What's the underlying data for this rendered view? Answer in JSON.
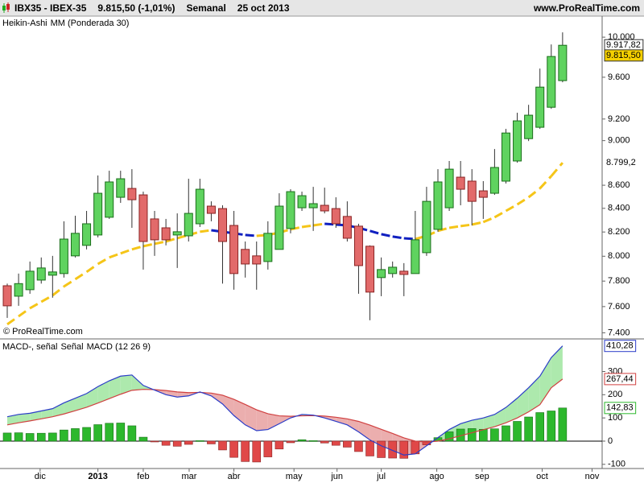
{
  "header": {
    "symbol": "IBX35 - IBEX-35",
    "price": "9.815,50 (-1,01%)",
    "period": "Semanal",
    "date": "25 oct 2013",
    "site": "www.ProRealTime.com",
    "watermark": "© ProRealTime.com"
  },
  "chart_data": [
    {
      "type": "candlestick",
      "name": "Heikin-Ashi",
      "log_scale": true,
      "up_color": "#5fd35f",
      "down_color": "#e26a6a",
      "xlim": [
        -0.64,
        52.49
      ],
      "ylim": [
        7360,
        10200
      ],
      "yticks": [
        {
          "value": 7400,
          "label": "7.400"
        },
        {
          "value": 7600,
          "label": "7.600"
        },
        {
          "value": 7800,
          "label": "7.800"
        },
        {
          "value": 8000,
          "label": "8.000"
        },
        {
          "value": 8200,
          "label": "8.200"
        },
        {
          "value": 8400,
          "label": "8.400"
        },
        {
          "value": 8600,
          "label": "8.600"
        },
        {
          "value": 9000,
          "label": "9.000"
        },
        {
          "value": 9200,
          "label": "9.200"
        },
        {
          "value": 9600,
          "label": "9.600"
        },
        {
          "value": 10000,
          "label": "10.000"
        }
      ],
      "open": [
        7763,
        7681,
        7732,
        7808,
        7847,
        7860,
        8003,
        8089,
        8175,
        8324,
        8495,
        8572,
        8516,
        8310,
        8235,
        8175,
        8168,
        8269,
        8419,
        8398,
        8255,
        8056,
        8003,
        7957,
        8056,
        8229,
        8405,
        8405,
        8426,
        8398,
        8331,
        8249,
        8082,
        7828,
        7860,
        7879,
        7860,
        8029,
        8222,
        8405,
        8671,
        8636,
        8551,
        8530,
        8636,
        8815,
        9018,
        9123,
        9311,
        9567
      ],
      "high": [
        7780,
        7860,
        7957,
        7990,
        8003,
        8290,
        8337,
        8378,
        8686,
        8728,
        8728,
        8742,
        8544,
        8378,
        8310,
        8357,
        8657,
        8657,
        8460,
        8426,
        8378,
        8121,
        8121,
        8290,
        8530,
        8565,
        8544,
        8586,
        8579,
        8495,
        8460,
        8269,
        8089,
        7990,
        7957,
        7944,
        8378,
        8586,
        8742,
        8815,
        8815,
        8742,
        8636,
        8923,
        9108,
        9259,
        9334,
        9685,
        9926,
        10049
      ],
      "low": [
        7513,
        7606,
        7700,
        7780,
        7669,
        7828,
        7990,
        8056,
        8155,
        8310,
        8447,
        8235,
        7892,
        8003,
        8089,
        7905,
        8121,
        8242,
        8290,
        7780,
        7732,
        7828,
        7732,
        7892,
        8056,
        8189,
        8378,
        8209,
        8357,
        8235,
        8121,
        7700,
        7495,
        7681,
        7828,
        7681,
        7860,
        8003,
        8202,
        8378,
        8426,
        8255,
        8310,
        8516,
        8615,
        8800,
        8996,
        9108,
        9296,
        9551
      ],
      "close": [
        7606,
        7780,
        7879,
        7905,
        7873,
        8141,
        8189,
        8269,
        8530,
        8629,
        8657,
        8474,
        8121,
        8135,
        8135,
        8202,
        8357,
        8565,
        8357,
        8121,
        7860,
        7937,
        7937,
        8189,
        8419,
        8544,
        8509,
        8440,
        8378,
        8269,
        8148,
        7924,
        7713,
        7892,
        7911,
        7853,
        8135,
        8460,
        8629,
        8742,
        8565,
        8460,
        8495,
        8757,
        9070,
        9183,
        9236,
        9504,
        9805,
        9917.82
      ],
      "last_label": "9.917,82",
      "last_price": {
        "value": 9815.5,
        "label": "9.815,50"
      },
      "ma": {
        "name": "MM (Ponderada 30)",
        "color": "#f5c518",
        "down_color": "#1020c0",
        "last_label": "8.799,2",
        "values": [
          7464,
          7525,
          7587,
          7637,
          7687,
          7757,
          7815,
          7873,
          7937,
          7990,
          8023,
          8056,
          8082,
          8102,
          8121,
          8148,
          8175,
          8202,
          8215,
          8202,
          8189,
          8175,
          8168,
          8175,
          8195,
          8222,
          8242,
          8255,
          8269,
          8262,
          8255,
          8235,
          8209,
          8182,
          8162,
          8148,
          8141,
          8168,
          8209,
          8235,
          8249,
          8262,
          8283,
          8324,
          8378,
          8433,
          8495,
          8572,
          8680,
          8799.2
        ]
      }
    },
    {
      "type": "macd",
      "xlim": [
        -0.64,
        52.49
      ],
      "ylim": [
        -118,
        437
      ],
      "yticks": [
        -100,
        0,
        100,
        200,
        300
      ],
      "xticks": [
        {
          "value": 2.9,
          "label": "dic"
        },
        {
          "value": 8.0,
          "label": "2013"
        },
        {
          "value": 12.0,
          "label": "feb"
        },
        {
          "value": 16.05,
          "label": "mar"
        },
        {
          "value": 20.0,
          "label": "abr"
        },
        {
          "value": 25.3,
          "label": "may"
        },
        {
          "value": 29.1,
          "label": "jun"
        },
        {
          "value": 33.0,
          "label": "jul"
        },
        {
          "value": 37.9,
          "label": "ago"
        },
        {
          "value": 41.9,
          "label": "sep"
        },
        {
          "value": 47.2,
          "label": "oct"
        },
        {
          "value": 51.6,
          "label": "nov"
        }
      ],
      "series": [
        {
          "name": "MACD-, señal",
          "color": "#2db82d",
          "down_color": "#e04848",
          "last_label": "142,83",
          "values": [
            35,
            36,
            33,
            34,
            35,
            48,
            54,
            59,
            71,
            77,
            78,
            66,
            17,
            -2,
            -18,
            -22,
            -14,
            2,
            -12,
            -38,
            -70,
            -88,
            -90,
            -68,
            -34,
            -7,
            6,
            2,
            -8,
            -18,
            -26,
            -45,
            -64,
            -71,
            -73,
            -74,
            -55,
            -16,
            15,
            40,
            52,
            54,
            51,
            53,
            66,
            85,
            104,
            123,
            130,
            142.83
          ]
        },
        {
          "name": "Señal",
          "color": "#d04040",
          "last_label": "267,44",
          "values": [
            70,
            79,
            87,
            96,
            105,
            117,
            131,
            146,
            164,
            183,
            202,
            219,
            223,
            222,
            218,
            212,
            209,
            210,
            207,
            198,
            180,
            158,
            135,
            118,
            109,
            107,
            109,
            110,
            108,
            103,
            96,
            85,
            69,
            51,
            33,
            14,
            0,
            -4,
            0,
            10,
            23,
            36,
            49,
            62,
            79,
            100,
            126,
            157,
            230,
            267.44
          ]
        },
        {
          "name": "MACD (12 26 9)",
          "color": "#2a3cc8",
          "last_label": "410,28",
          "values": [
            105,
            115,
            120,
            130,
            140,
            165,
            185,
            205,
            235,
            260,
            280,
            285,
            240,
            220,
            200,
            190,
            195,
            212,
            195,
            160,
            110,
            70,
            45,
            50,
            75,
            100,
            115,
            112,
            100,
            85,
            70,
            40,
            5,
            -20,
            -40,
            -60,
            -55,
            -20,
            15,
            50,
            75,
            90,
            100,
            115,
            145,
            185,
            230,
            280,
            360,
            410.28
          ]
        }
      ]
    }
  ]
}
